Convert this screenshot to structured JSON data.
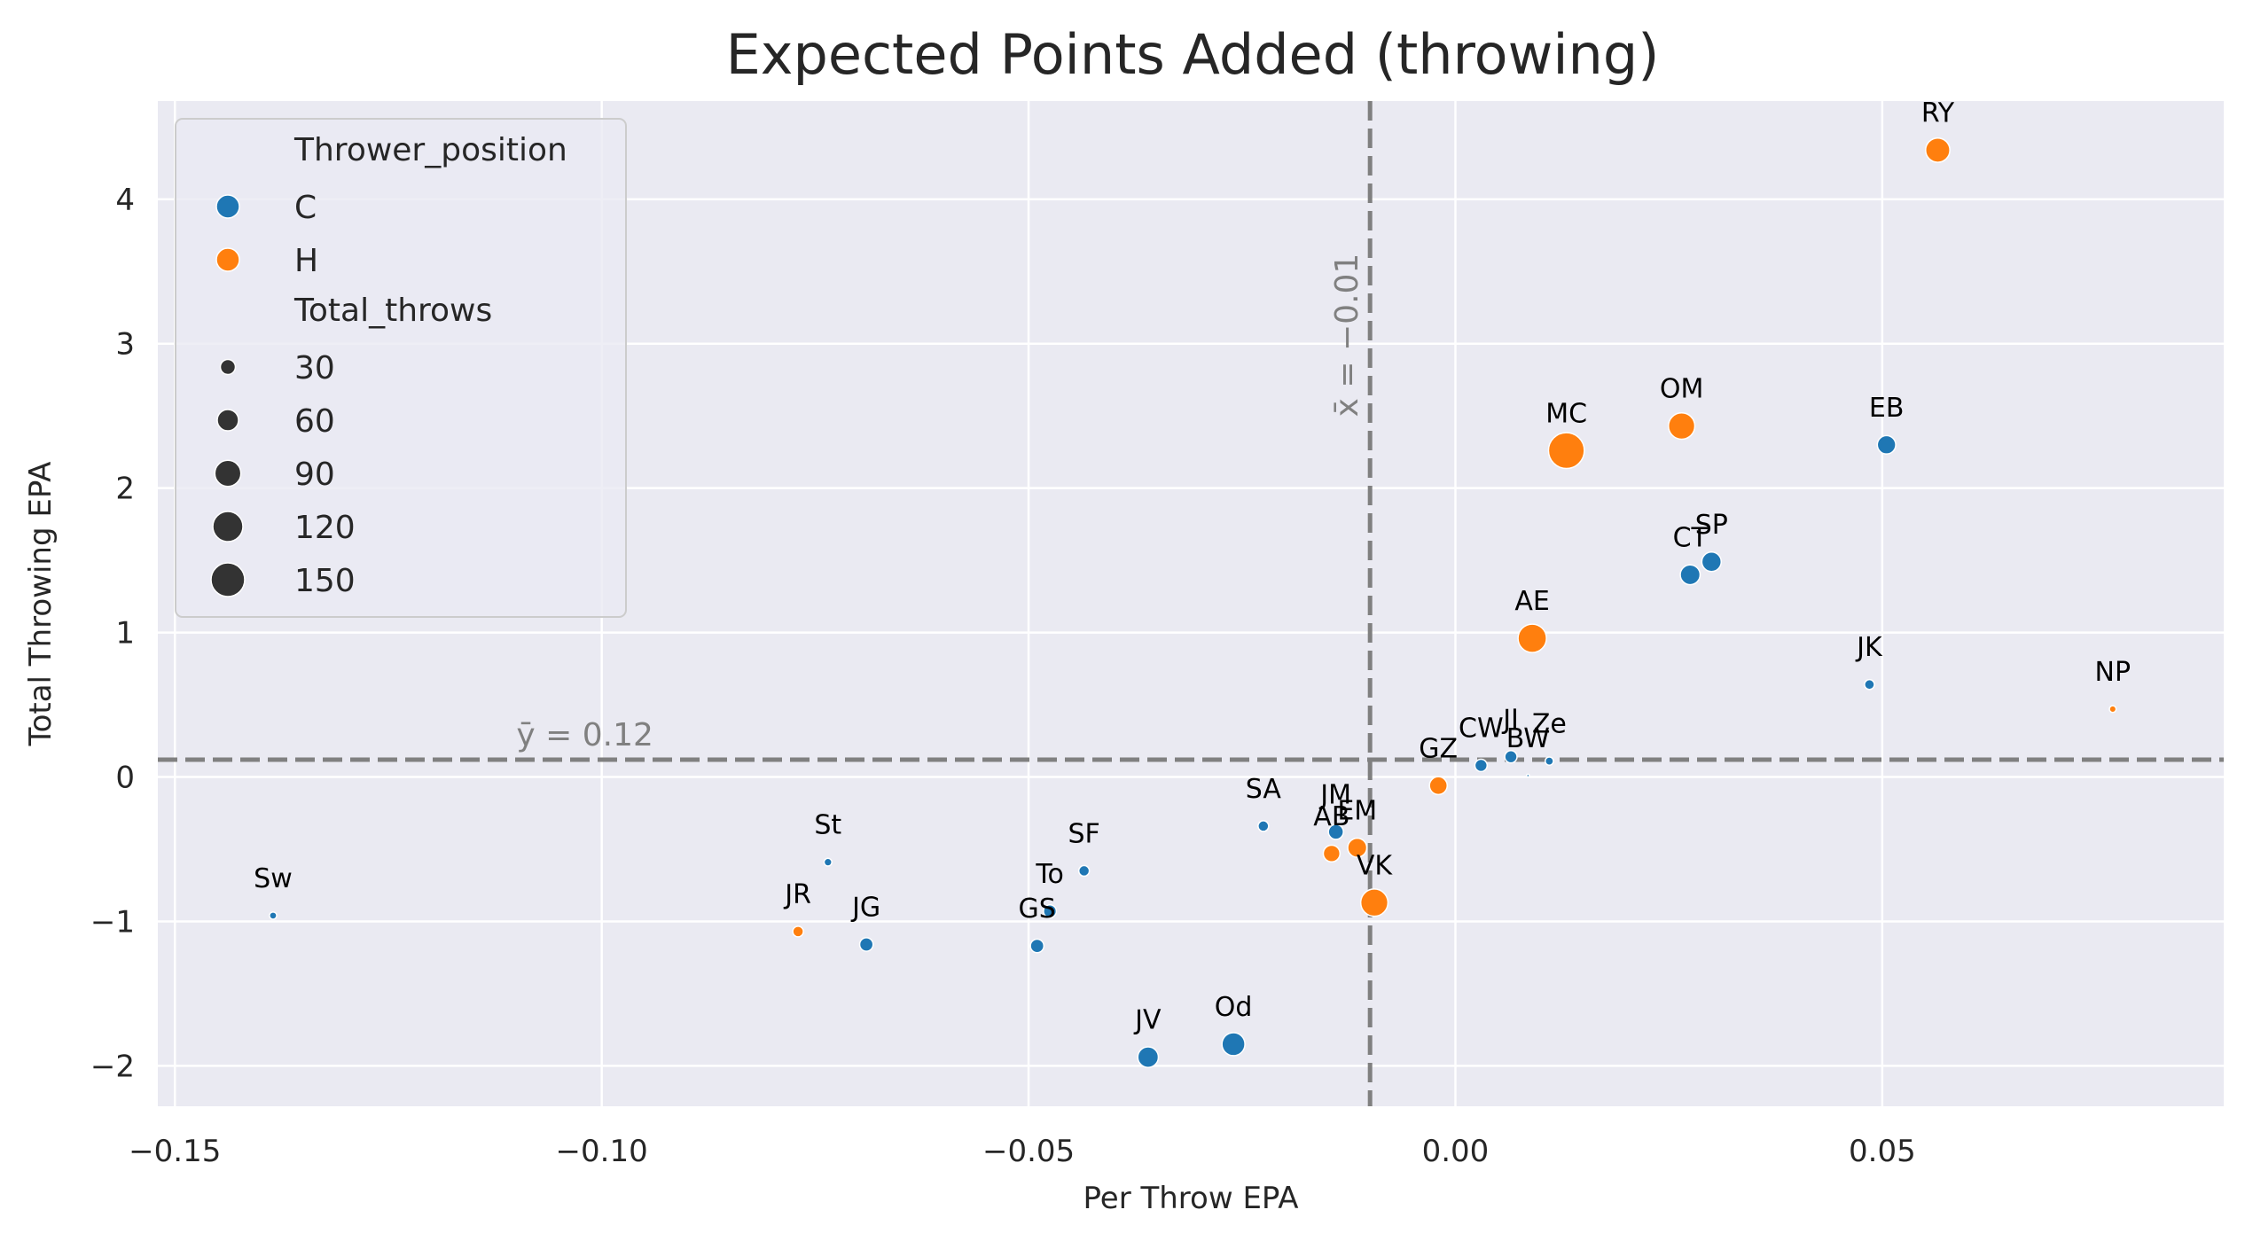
{
  "chart_data": {
    "type": "scatter",
    "title": "Expected Points Added (throwing)",
    "xlabel": "Per Throw EPA",
    "ylabel": "Total Throwing EPA",
    "xlim": [
      -0.152,
      0.09
    ],
    "ylim": [
      -2.28,
      4.68
    ],
    "x_ticks": [
      -0.15,
      -0.1,
      -0.05,
      0.0,
      0.05
    ],
    "x_tick_labels": [
      "−0.15",
      "−0.10",
      "−0.05",
      "0.00",
      "0.05"
    ],
    "y_ticks": [
      -2,
      -1,
      0,
      1,
      2,
      3,
      4
    ],
    "y_tick_labels": [
      "−2",
      "−1",
      "0",
      "1",
      "2",
      "3",
      "4"
    ],
    "grid": true,
    "legend_position": "top-left",
    "legend": {
      "hue_title": "Thrower_position",
      "hue_entries": [
        {
          "label": "C",
          "color": "#1f77b4"
        },
        {
          "label": "H",
          "color": "#ff7f0e"
        }
      ],
      "size_title": "Total_throws",
      "size_entries": [
        {
          "label": "30",
          "throws": 30
        },
        {
          "label": "60",
          "throws": 60
        },
        {
          "label": "90",
          "throws": 90
        },
        {
          "label": "120",
          "throws": 120
        },
        {
          "label": "150",
          "throws": 150
        }
      ]
    },
    "reference_lines": [
      {
        "axis": "x",
        "value": -0.01,
        "label": "x̄ = −0.01"
      },
      {
        "axis": "y",
        "value": 0.12,
        "label": "ȳ = 0.12"
      }
    ],
    "colors": {
      "C": "#1f77b4",
      "H": "#ff7f0e",
      "reference": "#808080",
      "background": "#eaeaf2",
      "grid": "#ffffff"
    },
    "points": [
      {
        "label": "RY",
        "x": 0.0565,
        "y": 4.34,
        "position": "H",
        "throws": 78
      },
      {
        "label": "MC",
        "x": 0.013,
        "y": 2.26,
        "position": "H",
        "throws": 170
      },
      {
        "label": "OM",
        "x": 0.0265,
        "y": 2.43,
        "position": "H",
        "throws": 92
      },
      {
        "label": "EB",
        "x": 0.0505,
        "y": 2.3,
        "position": "C",
        "throws": 45
      },
      {
        "label": "SP",
        "x": 0.03,
        "y": 1.49,
        "position": "C",
        "throws": 50
      },
      {
        "label": "CT",
        "x": 0.0275,
        "y": 1.4,
        "position": "C",
        "throws": 52
      },
      {
        "label": "AE",
        "x": 0.009,
        "y": 0.96,
        "position": "H",
        "throws": 107
      },
      {
        "label": "JK",
        "x": 0.0485,
        "y": 0.64,
        "position": "C",
        "throws": 13
      },
      {
        "label": "NP",
        "x": 0.077,
        "y": 0.47,
        "position": "H",
        "throws": 6
      },
      {
        "label": "CW",
        "x": 0.003,
        "y": 0.08,
        "position": "C",
        "throws": 20
      },
      {
        "label": "JI",
        "x": 0.0065,
        "y": 0.14,
        "position": "C",
        "throws": 20
      },
      {
        "label": "Ze",
        "x": 0.011,
        "y": 0.11,
        "position": "C",
        "throws": 9
      },
      {
        "label": "BW",
        "x": 0.0085,
        "y": 0.01,
        "position": "C",
        "throws": 1
      },
      {
        "label": "GZ",
        "x": -0.002,
        "y": -0.06,
        "position": "H",
        "throws": 42
      },
      {
        "label": "SA",
        "x": -0.0225,
        "y": -0.34,
        "position": "C",
        "throws": 15
      },
      {
        "label": "JM",
        "x": -0.014,
        "y": -0.38,
        "position": "C",
        "throws": 30
      },
      {
        "label": "AB",
        "x": -0.0145,
        "y": -0.53,
        "position": "H",
        "throws": 37
      },
      {
        "label": "EM",
        "x": -0.0115,
        "y": -0.49,
        "position": "H",
        "throws": 48
      },
      {
        "label": "VK",
        "x": -0.0095,
        "y": -0.87,
        "position": "H",
        "throws": 98
      },
      {
        "label": "SF",
        "x": -0.0435,
        "y": -0.65,
        "position": "C",
        "throws": 15
      },
      {
        "label": "To",
        "x": -0.0475,
        "y": -0.93,
        "position": "C",
        "throws": 22
      },
      {
        "label": "GS",
        "x": -0.049,
        "y": -1.17,
        "position": "C",
        "throws": 24
      },
      {
        "label": "St",
        "x": -0.0735,
        "y": -0.59,
        "position": "C",
        "throws": 8
      },
      {
        "label": "JR",
        "x": -0.077,
        "y": -1.07,
        "position": "H",
        "throws": 15
      },
      {
        "label": "JG",
        "x": -0.069,
        "y": -1.16,
        "position": "C",
        "throws": 24
      },
      {
        "label": "Sw",
        "x": -0.1385,
        "y": -0.96,
        "position": "C",
        "throws": 7
      },
      {
        "label": "JV",
        "x": -0.036,
        "y": -1.94,
        "position": "C",
        "throws": 56
      },
      {
        "label": "Od",
        "x": -0.026,
        "y": -1.85,
        "position": "C",
        "throws": 70
      }
    ]
  }
}
